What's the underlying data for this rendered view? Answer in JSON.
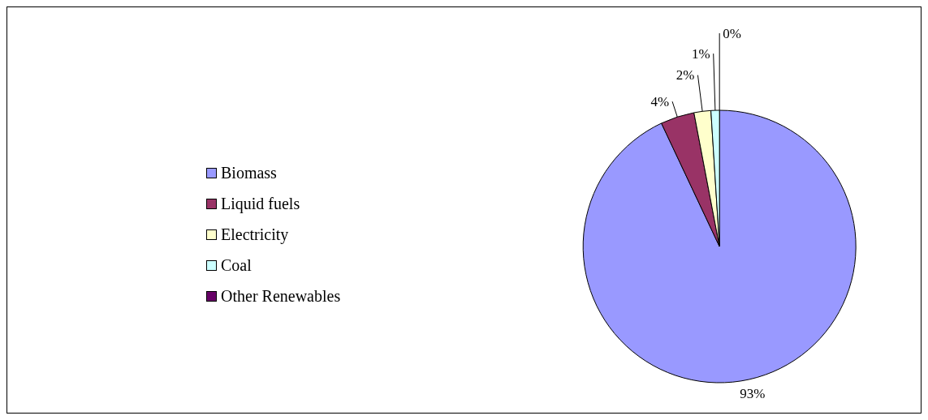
{
  "chart_data": {
    "type": "pie",
    "categories": [
      "Biomass",
      "Liquid fuels",
      "Electricity",
      "Coal",
      "Other Renewables"
    ],
    "values": [
      93,
      4,
      2,
      1,
      0
    ],
    "value_labels": [
      "93%",
      "4%",
      "2%",
      "1%",
      "0%"
    ],
    "colors": [
      "#9999ff",
      "#993366",
      "#ffffcc",
      "#ccffff",
      "#660066"
    ],
    "legend": "left"
  }
}
